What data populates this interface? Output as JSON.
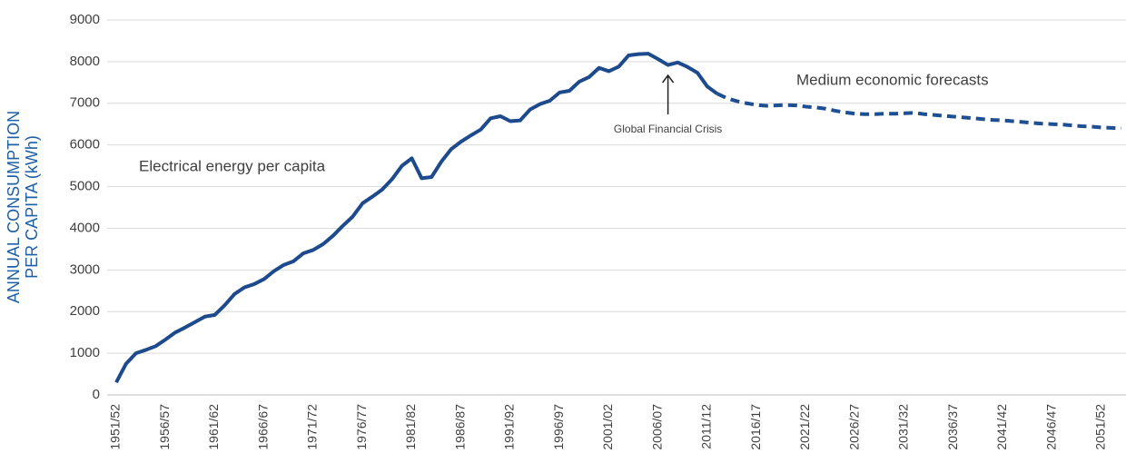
{
  "chart_data": {
    "type": "line",
    "y_label": [
      "ANNUAL CONSUMPTION",
      "PER CAPITA (kWh)"
    ],
    "annotations": [
      {
        "text": "Global Financial Crisis",
        "category": "2007/08"
      }
    ],
    "categories": [
      "1951/52",
      null,
      null,
      null,
      null,
      "1956/57",
      null,
      null,
      null,
      null,
      "1961/62",
      null,
      null,
      null,
      null,
      "1966/67",
      null,
      null,
      null,
      null,
      "1971/72",
      null,
      null,
      null,
      null,
      "1976/77",
      null,
      null,
      null,
      null,
      "1981/82",
      null,
      null,
      null,
      null,
      "1986/87",
      null,
      null,
      null,
      null,
      "1991/92",
      null,
      null,
      null,
      null,
      "1996/97",
      null,
      null,
      null,
      null,
      "2001/02",
      null,
      null,
      null,
      null,
      "2006/07",
      null,
      null,
      null,
      null,
      "2011/12",
      null,
      null,
      null,
      null,
      "2016/17",
      null,
      null,
      null,
      null,
      "2021/22",
      null,
      null,
      null,
      null,
      "2026/27",
      null,
      null,
      null,
      null,
      "2031/32",
      null,
      null,
      null,
      null,
      "2036/37",
      null,
      null,
      null,
      null,
      "2041/42",
      null,
      null,
      null,
      null,
      "2046/47",
      null,
      null,
      null,
      null,
      "2051/52",
      null,
      null
    ],
    "series": [
      {
        "name": "Electrical energy per capita",
        "color": "#1c4a8c",
        "dashed": false,
        "values": [
          300,
          750,
          1000,
          1080,
          1170,
          1330,
          1500,
          1620,
          1750,
          1880,
          1920,
          2150,
          2420,
          2580,
          2660,
          2780,
          2970,
          3120,
          3210,
          3400,
          3480,
          3620,
          3820,
          4060,
          4280,
          4600,
          4760,
          4930,
          5180,
          5500,
          5680,
          5200,
          5230,
          5600,
          5900,
          6080,
          6230,
          6370,
          6640,
          6690,
          6570,
          6590,
          6850,
          6980,
          7060,
          7260,
          7300,
          7520,
          7630,
          7850,
          7770,
          7880,
          8150,
          8180,
          8190,
          8060,
          7920,
          7980,
          7870,
          7730,
          7400,
          7230,
          null,
          null,
          null,
          null,
          null,
          null,
          null,
          null,
          null,
          null,
          null,
          null,
          null,
          null,
          null,
          null,
          null,
          null,
          null,
          null,
          null,
          null,
          null,
          null,
          null,
          null,
          null,
          null,
          null,
          null,
          null,
          null,
          null,
          null,
          null,
          null,
          null,
          null,
          null,
          null,
          null
        ]
      },
      {
        "name": "Medium economic forecasts",
        "color": "#1d4f93",
        "dashed": true,
        "values": [
          null,
          null,
          null,
          null,
          null,
          null,
          null,
          null,
          null,
          null,
          null,
          null,
          null,
          null,
          null,
          null,
          null,
          null,
          null,
          null,
          null,
          null,
          null,
          null,
          null,
          null,
          null,
          null,
          null,
          null,
          null,
          null,
          null,
          null,
          null,
          null,
          null,
          null,
          null,
          null,
          null,
          null,
          null,
          null,
          null,
          null,
          null,
          null,
          null,
          null,
          null,
          null,
          null,
          null,
          null,
          null,
          null,
          null,
          null,
          null,
          null,
          7230,
          7120,
          7050,
          7000,
          6960,
          6940,
          6950,
          6960,
          6950,
          6920,
          6900,
          6870,
          6820,
          6780,
          6750,
          6740,
          6740,
          6750,
          6750,
          6760,
          6770,
          6740,
          6720,
          6700,
          6680,
          6660,
          6640,
          6620,
          6600,
          6590,
          6570,
          6550,
          6530,
          6510,
          6500,
          6490,
          6470,
          6450,
          6440,
          6420,
          6410,
          6400
        ]
      }
    ],
    "ylim": [
      0,
      9000
    ],
    "yticks": [
      0,
      1000,
      2000,
      3000,
      4000,
      5000,
      6000,
      7000,
      8000,
      9000
    ],
    "grid": true
  }
}
